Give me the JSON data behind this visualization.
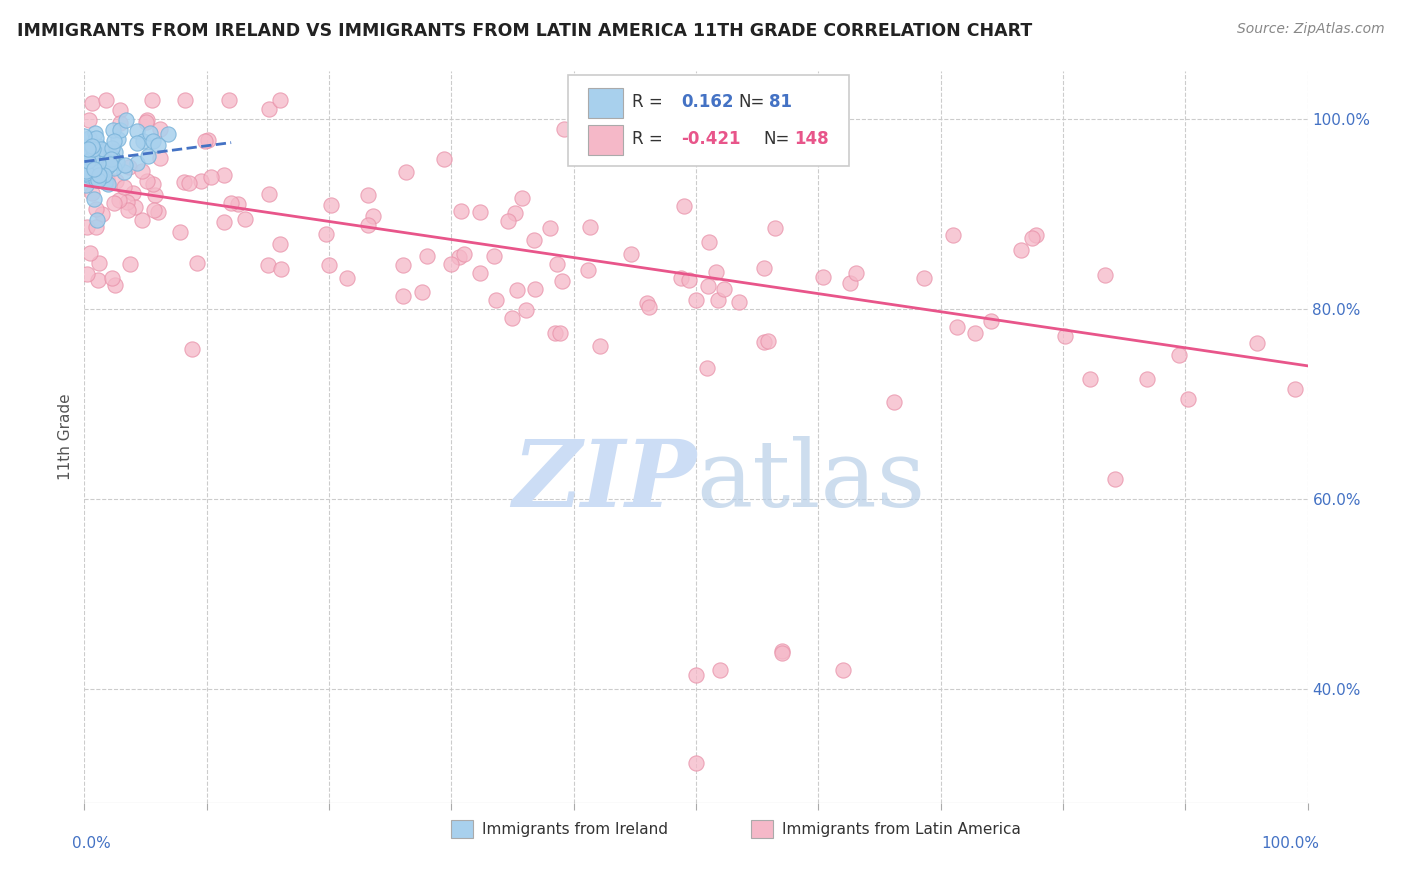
{
  "title": "IMMIGRANTS FROM IRELAND VS IMMIGRANTS FROM LATIN AMERICA 11TH GRADE CORRELATION CHART",
  "source": "Source: ZipAtlas.com",
  "ylabel": "11th Grade",
  "ireland_R": 0.162,
  "ireland_N": 81,
  "latin_R": -0.421,
  "latin_N": 148,
  "ireland_color": "#a8d0ed",
  "ireland_edge_color": "#7ab3d9",
  "latin_color": "#f5b8c8",
  "latin_edge_color": "#e890a8",
  "ireland_line_color": "#4472c4",
  "latin_line_color": "#e8558a",
  "background_color": "#ffffff",
  "grid_color": "#cccccc",
  "title_color": "#222222",
  "axis_label_color": "#4472c4",
  "r_value_color_blue": "#4472c4",
  "r_value_color_pink": "#e8558a",
  "watermark_color": "#ccddf5",
  "xlim": [
    0.0,
    1.0
  ],
  "ylim": [
    0.28,
    1.05
  ],
  "y_ticks": [
    0.4,
    0.6,
    0.8,
    1.0
  ],
  "y_tick_labels": [
    "40.0%",
    "60.0%",
    "80.0%",
    "100.0%"
  ],
  "ireland_trend_x": [
    0.0,
    0.12
  ],
  "ireland_trend_y": [
    0.955,
    0.975
  ],
  "latin_trend_x": [
    0.0,
    1.0
  ],
  "latin_trend_y": [
    0.93,
    0.74
  ]
}
